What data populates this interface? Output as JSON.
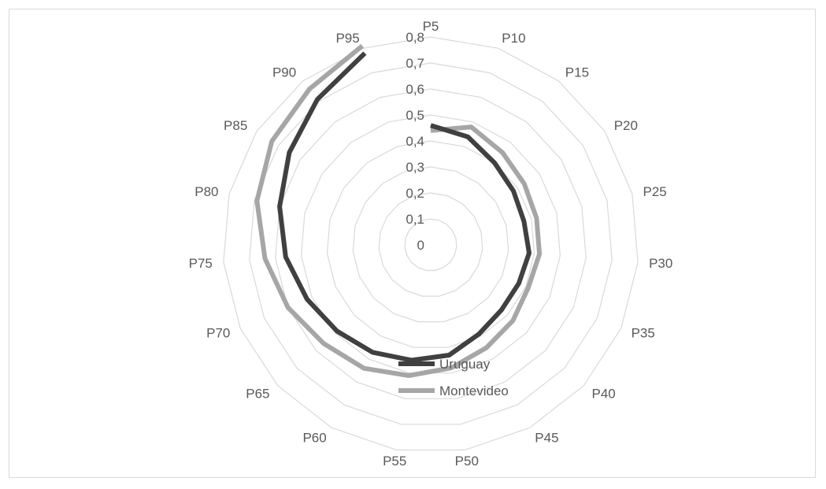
{
  "chart_data": {
    "type": "radar",
    "categories": [
      "P5",
      "P10",
      "P15",
      "P20",
      "P25",
      "P30",
      "P35",
      "P40",
      "P45",
      "P50",
      "P55",
      "P60",
      "P65",
      "P70",
      "P75",
      "P80",
      "P85",
      "P90",
      "P95"
    ],
    "radial_ticks": [
      "0",
      "0,1",
      "0,2",
      "0,3",
      "0,4",
      "0,5",
      "0,6",
      "0,7",
      "0,8"
    ],
    "rlim": [
      0,
      0.8
    ],
    "grid": true,
    "legend_position": "bottom-center",
    "series": [
      {
        "name": "Uruguay",
        "color": "#404040",
        "values": [
          0.46,
          0.44,
          0.4,
          0.38,
          0.37,
          0.38,
          0.37,
          0.37,
          0.39,
          0.43,
          0.45,
          0.47,
          0.49,
          0.52,
          0.56,
          0.6,
          0.65,
          0.71,
          0.78
        ]
      },
      {
        "name": "Montevideo",
        "color": "#a6a6a6",
        "values": [
          0.44,
          0.48,
          0.45,
          0.43,
          0.42,
          0.42,
          0.41,
          0.43,
          0.45,
          0.48,
          0.51,
          0.54,
          0.56,
          0.6,
          0.64,
          0.69,
          0.73,
          0.76,
          0.81
        ]
      }
    ]
  }
}
